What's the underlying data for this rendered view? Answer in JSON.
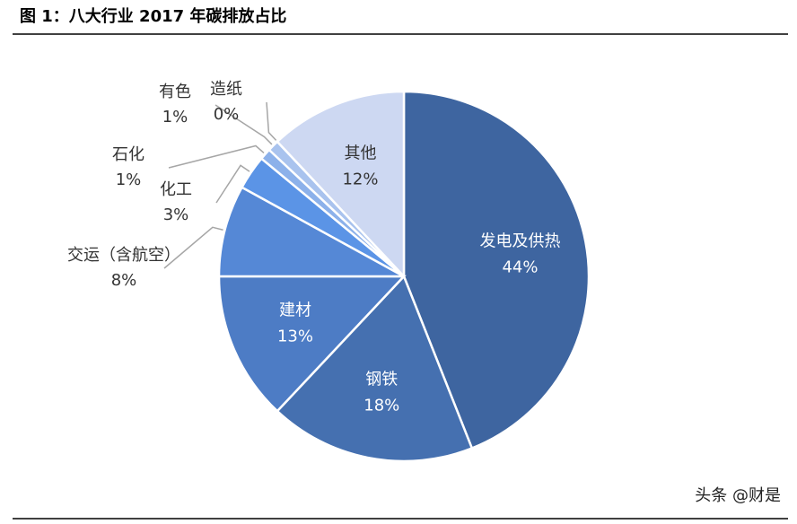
{
  "chart_data": {
    "type": "pie",
    "title": "图 1：八大行业 2017 年碳排放占比",
    "categories": [
      "发电及供热",
      "钢铁",
      "建材",
      "交运（含航空）",
      "化工",
      "石化",
      "有色",
      "造纸",
      "其他"
    ],
    "values": [
      44,
      18,
      13,
      8,
      3,
      1,
      1,
      0,
      12
    ],
    "value_labels": [
      "44%",
      "18%",
      "13%",
      "8%",
      "3%",
      "1%",
      "1%",
      "0%",
      "12%"
    ],
    "colors": [
      "#3e65a0",
      "#4570b0",
      "#4d7cc5",
      "#5588d6",
      "#5b94e6",
      "#8cb1ea",
      "#a9c3ee",
      "#bccff0",
      "#cdd8f2"
    ],
    "watermark": "头条 @财是"
  }
}
